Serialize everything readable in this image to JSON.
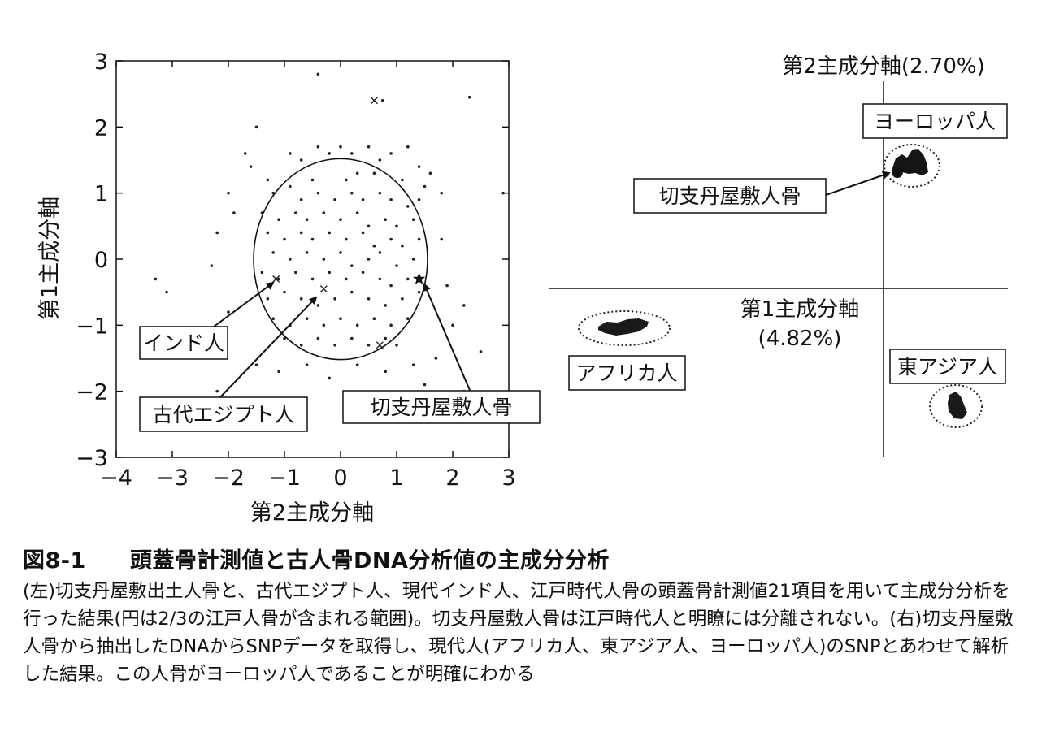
{
  "chart_data": [
    {
      "type": "scatter",
      "title": "",
      "xlabel": "第2主成分軸",
      "ylabel": "第1主成分軸",
      "xlim": [
        -4,
        3
      ],
      "ylim": [
        -3,
        3
      ],
      "xticks": [
        "−4",
        "−3",
        "−2",
        "−1",
        "0",
        "1",
        "2",
        "3"
      ],
      "yticks": [
        "3",
        "2",
        "1",
        "0",
        "−1",
        "−2",
        "−3"
      ],
      "ellipse": {
        "cx": 0,
        "cy": 0,
        "rx": 1.55,
        "ry": 1.52
      },
      "series": [
        {
          "name": "",
          "marker": "dot",
          "points": [
            [
              -1.5,
              2.0
            ],
            [
              -0.9,
              1.6
            ],
            [
              -0.7,
              1.5
            ],
            [
              -0.4,
              1.7
            ],
            [
              -0.2,
              1.6
            ],
            [
              0.0,
              1.7
            ],
            [
              0.2,
              1.6
            ],
            [
              0.5,
              1.7
            ],
            [
              0.7,
              1.5
            ],
            [
              0.9,
              1.6
            ],
            [
              1.2,
              1.7
            ],
            [
              1.4,
              1.4
            ],
            [
              -1.7,
              1.6
            ],
            [
              -1.6,
              1.4
            ],
            [
              -1.3,
              1.2
            ],
            [
              -0.5,
              1.2
            ],
            [
              0.1,
              1.2
            ],
            [
              0.3,
              1.3
            ],
            [
              0.6,
              1.3
            ],
            [
              1.1,
              1.2
            ],
            [
              1.5,
              1.1
            ],
            [
              1.6,
              1.3
            ],
            [
              -1.2,
              1.0
            ],
            [
              -0.9,
              1.1
            ],
            [
              -0.7,
              0.9
            ],
            [
              -0.4,
              1.0
            ],
            [
              -0.1,
              0.9
            ],
            [
              0.2,
              1.0
            ],
            [
              0.4,
              0.9
            ],
            [
              0.7,
              1.0
            ],
            [
              0.9,
              0.9
            ],
            [
              1.2,
              0.8
            ],
            [
              1.4,
              0.9
            ],
            [
              -1.4,
              0.7
            ],
            [
              -1.1,
              0.6
            ],
            [
              -0.8,
              0.7
            ],
            [
              -0.6,
              0.6
            ],
            [
              -0.3,
              0.7
            ],
            [
              0.0,
              0.6
            ],
            [
              0.3,
              0.7
            ],
            [
              0.5,
              0.5
            ],
            [
              0.8,
              0.6
            ],
            [
              1.0,
              0.5
            ],
            [
              1.3,
              0.6
            ],
            [
              -1.3,
              0.4
            ],
            [
              -1.0,
              0.3
            ],
            [
              -0.7,
              0.4
            ],
            [
              -0.5,
              0.3
            ],
            [
              -0.2,
              0.4
            ],
            [
              0.1,
              0.3
            ],
            [
              0.4,
              0.4
            ],
            [
              0.6,
              0.2
            ],
            [
              0.9,
              0.3
            ],
            [
              1.1,
              0.2
            ],
            [
              1.4,
              0.3
            ],
            [
              -1.2,
              0.1
            ],
            [
              -0.9,
              0.0
            ],
            [
              -0.6,
              0.1
            ],
            [
              -0.3,
              0.0
            ],
            [
              0.0,
              0.1
            ],
            [
              0.2,
              -0.1
            ],
            [
              0.5,
              0.0
            ],
            [
              0.7,
              0.1
            ],
            [
              1.0,
              -0.1
            ],
            [
              1.3,
              0.0
            ],
            [
              -1.4,
              -0.2
            ],
            [
              -1.1,
              -0.3
            ],
            [
              -0.8,
              -0.2
            ],
            [
              -0.5,
              -0.3
            ],
            [
              -0.2,
              -0.2
            ],
            [
              0.1,
              -0.3
            ],
            [
              0.4,
              -0.2
            ],
            [
              0.7,
              -0.3
            ],
            [
              0.9,
              -0.4
            ],
            [
              1.2,
              -0.3
            ],
            [
              -1.3,
              -0.6
            ],
            [
              -1.0,
              -0.5
            ],
            [
              -0.7,
              -0.6
            ],
            [
              -0.4,
              -0.7
            ],
            [
              -0.1,
              -0.6
            ],
            [
              0.2,
              -0.5
            ],
            [
              0.5,
              -0.6
            ],
            [
              0.8,
              -0.7
            ],
            [
              1.1,
              -0.6
            ],
            [
              1.4,
              -0.5
            ],
            [
              -1.2,
              -0.9
            ],
            [
              -0.9,
              -1.0
            ],
            [
              -0.6,
              -0.9
            ],
            [
              -0.3,
              -1.0
            ],
            [
              0.0,
              -0.9
            ],
            [
              0.3,
              -1.0
            ],
            [
              0.6,
              -0.9
            ],
            [
              0.9,
              -1.0
            ],
            [
              1.2,
              -0.9
            ],
            [
              -1.0,
              -1.2
            ],
            [
              -0.7,
              -1.3
            ],
            [
              -0.4,
              -1.2
            ],
            [
              -0.1,
              -1.3
            ],
            [
              0.2,
              -1.2
            ],
            [
              0.5,
              -1.3
            ],
            [
              0.8,
              -1.2
            ],
            [
              1.0,
              -1.3
            ],
            [
              -1.5,
              -1.6
            ],
            [
              -1.1,
              -1.7
            ],
            [
              -0.6,
              -1.6
            ],
            [
              -0.2,
              -1.8
            ],
            [
              0.3,
              -1.6
            ],
            [
              0.8,
              -1.7
            ],
            [
              1.3,
              -1.6
            ],
            [
              1.5,
              -1.9
            ],
            [
              -2.1,
              -1.3
            ],
            [
              -2.0,
              -0.8
            ],
            [
              -2.2,
              0.4
            ],
            [
              -2.3,
              -0.1
            ],
            [
              -2.0,
              1.0
            ],
            [
              -1.9,
              0.7
            ],
            [
              1.8,
              0.3
            ],
            [
              1.9,
              -0.4
            ],
            [
              2.2,
              -0.7
            ],
            [
              1.8,
              1.0
            ],
            [
              2.0,
              -1.0
            ],
            [
              1.7,
              -1.5
            ],
            [
              -3.1,
              -0.5
            ],
            [
              -3.3,
              -0.3
            ],
            [
              -2.7,
              -1.1
            ],
            [
              -2.2,
              -2.0
            ],
            [
              2.3,
              2.45
            ],
            [
              0.75,
              2.4
            ],
            [
              -0.4,
              2.8
            ],
            [
              0.6,
              -2.1
            ],
            [
              1.0,
              -2.2
            ],
            [
              2.2,
              -2.0
            ],
            [
              2.5,
              -1.4
            ],
            [
              2.9,
              1.0
            ]
          ]
        },
        {
          "name": "",
          "marker": "x",
          "points": [
            [
              -1.15,
              -0.3
            ],
            [
              -0.3,
              -0.45
            ],
            [
              0.7,
              -1.3
            ],
            [
              0.6,
              2.4
            ]
          ]
        },
        {
          "name": "",
          "marker": "star",
          "points": [
            [
              1.4,
              -0.3
            ]
          ]
        }
      ],
      "annotations": [
        {
          "text": "インド人",
          "target": [
            -1.15,
            -0.4
          ]
        },
        {
          "text": "古代エジプト人",
          "target": [
            -0.45,
            -0.55
          ]
        },
        {
          "text": "切支丹屋敷人骨",
          "target": [
            1.45,
            -0.4
          ]
        }
      ]
    },
    {
      "type": "scatter",
      "title": "",
      "xlabel": "第1主成分軸",
      "xlabel_pct": "(4.82%)",
      "ylabel": "第2主成分軸(2.70%)",
      "grid": false,
      "clusters": [
        {
          "label": "ヨーロッパ人"
        },
        {
          "label": "アフリカ人"
        },
        {
          "label": "東アジア人"
        }
      ],
      "annotations": [
        {
          "text": "切支丹屋敷人骨"
        }
      ]
    }
  ],
  "caption": {
    "figure_number": "図8-1",
    "title": "頭蓋骨計測値と古人骨DNA分析値の主成分分析",
    "body": "(左)切支丹屋敷出土人骨と、古代エジプト人、現代インド人、江戸時代人骨の頭蓋骨計測値21項目を用いて主成分分析を行った結果(円は2/3の江戸人骨が含まれる範囲)。切支丹屋敷人骨は江戸時代人と明瞭には分離されない。(右)切支丹屋敷人骨から抽出したDNAからSNPデータを取得し、現代人(アフリカ人、東アジア人、ヨーロッパ人)のSNPとあわせて解析した結果。この人骨がヨーロッパ人であることが明確にわかる"
  }
}
